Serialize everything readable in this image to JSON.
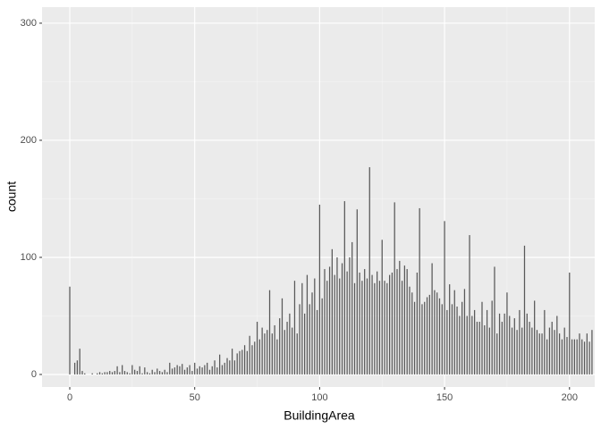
{
  "chart_data": {
    "type": "bar",
    "xlabel": "BuildingArea",
    "ylabel": "count",
    "x": [
      0,
      1,
      2,
      3,
      4,
      5,
      6,
      7,
      8,
      9,
      10,
      11,
      12,
      13,
      14,
      15,
      16,
      17,
      18,
      19,
      20,
      21,
      22,
      23,
      24,
      25,
      26,
      27,
      28,
      29,
      30,
      31,
      32,
      33,
      34,
      35,
      36,
      37,
      38,
      39,
      40,
      41,
      42,
      43,
      44,
      45,
      46,
      47,
      48,
      49,
      50,
      51,
      52,
      53,
      54,
      55,
      56,
      57,
      58,
      59,
      60,
      61,
      62,
      63,
      64,
      65,
      66,
      67,
      68,
      69,
      70,
      71,
      72,
      73,
      74,
      75,
      76,
      77,
      78,
      79,
      80,
      81,
      82,
      83,
      84,
      85,
      86,
      87,
      88,
      89,
      90,
      91,
      92,
      93,
      94,
      95,
      96,
      97,
      98,
      99,
      100,
      101,
      102,
      103,
      104,
      105,
      106,
      107,
      108,
      109,
      110,
      111,
      112,
      113,
      114,
      115,
      116,
      117,
      118,
      119,
      120,
      121,
      122,
      123,
      124,
      125,
      126,
      127,
      128,
      129,
      130,
      131,
      132,
      133,
      134,
      135,
      136,
      137,
      138,
      139,
      140,
      141,
      142,
      143,
      144,
      145,
      146,
      147,
      148,
      149,
      150,
      151,
      152,
      153,
      154,
      155,
      156,
      157,
      158,
      159,
      160,
      161,
      162,
      163,
      164,
      165,
      166,
      167,
      168,
      169,
      170,
      171,
      172,
      173,
      174,
      175,
      176,
      177,
      178,
      179,
      180,
      181,
      182,
      183,
      184,
      185,
      186,
      187,
      188,
      189,
      190,
      191,
      192,
      193,
      194,
      195,
      196,
      197,
      198,
      199,
      200,
      201,
      202,
      203,
      204,
      205,
      206,
      207,
      208,
      209
    ],
    "values": [
      75,
      0,
      10,
      12,
      22,
      3,
      1,
      0,
      0,
      1,
      0,
      1,
      2,
      1,
      2,
      2,
      3,
      2,
      3,
      7,
      2,
      8,
      3,
      2,
      1,
      8,
      4,
      3,
      7,
      1,
      6,
      2,
      1,
      4,
      2,
      5,
      3,
      2,
      4,
      2,
      10,
      5,
      6,
      8,
      7,
      9,
      4,
      6,
      8,
      3,
      10,
      5,
      7,
      6,
      8,
      10,
      4,
      7,
      12,
      6,
      17,
      8,
      10,
      14,
      12,
      22,
      12,
      18,
      20,
      21,
      25,
      20,
      33,
      25,
      28,
      45,
      30,
      40,
      35,
      38,
      72,
      35,
      42,
      30,
      48,
      65,
      38,
      45,
      52,
      40,
      80,
      35,
      60,
      78,
      52,
      85,
      60,
      70,
      82,
      55,
      145,
      65,
      90,
      80,
      92,
      107,
      85,
      100,
      82,
      95,
      148,
      88,
      100,
      113,
      78,
      141,
      87,
      80,
      90,
      82,
      177,
      85,
      78,
      88,
      80,
      115,
      80,
      78,
      85,
      87,
      147,
      90,
      97,
      80,
      93,
      90,
      75,
      70,
      62,
      87,
      142,
      60,
      62,
      66,
      68,
      95,
      72,
      70,
      65,
      60,
      131,
      55,
      77,
      60,
      72,
      58,
      50,
      62,
      73,
      50,
      119,
      50,
      55,
      45,
      45,
      62,
      42,
      55,
      40,
      63,
      92,
      35,
      52,
      45,
      52,
      70,
      50,
      40,
      48,
      38,
      55,
      40,
      110,
      52,
      45,
      40,
      63,
      38,
      35,
      35,
      55,
      30,
      40,
      45,
      38,
      50,
      35,
      30,
      40,
      32,
      87,
      30,
      30,
      30,
      35,
      30,
      28,
      35,
      28,
      38
    ],
    "color": "#595959",
    "xlim": [
      -11.1,
      210.1
    ],
    "ylim": [
      -10.7,
      313.7
    ],
    "xticks": [
      0,
      50,
      100,
      150,
      200
    ],
    "yticks": [
      0,
      100,
      200,
      300
    ],
    "grid": true
  }
}
